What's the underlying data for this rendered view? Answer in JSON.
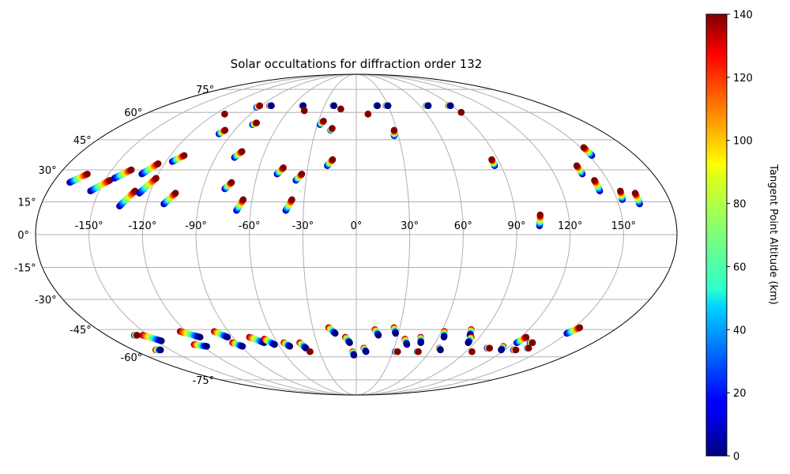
{
  "chart_data": {
    "type": "scatter",
    "projection": "mollweide",
    "title": "Solar occultations for diffraction order 132",
    "xlabel": "",
    "ylabel": "",
    "xlim": [
      -180,
      180
    ],
    "ylim": [
      -90,
      90
    ],
    "grid": true,
    "lon_ticks": [
      -150,
      -120,
      -90,
      -60,
      -30,
      0,
      30,
      60,
      90,
      120,
      150
    ],
    "lon_tick_labels": [
      "-150°",
      "-120°",
      "-90°",
      "-60°",
      "-30°",
      "0°",
      "30°",
      "60°",
      "90°",
      "120°",
      "150°"
    ],
    "lat_ticks": [
      75,
      60,
      45,
      30,
      15,
      0,
      -15,
      -30,
      -45,
      -60,
      -75
    ],
    "lat_tick_labels": [
      "75°",
      "60°",
      "45°",
      "30°",
      "15°",
      "0°",
      "-15°",
      "-30°",
      "-45°",
      "-60°",
      "-75°"
    ],
    "colorbar": {
      "label": "Tangent Point Altitude (km)",
      "min": 0,
      "max": 140,
      "ticks": [
        0,
        20,
        40,
        60,
        80,
        100,
        120,
        140
      ],
      "tick_labels": [
        "0",
        "20",
        "40",
        "60",
        "80",
        "100",
        "120",
        "140"
      ],
      "colormap": "jet"
    },
    "occultations": [
      {
        "lon": -170,
        "lat": 24,
        "dlon": 7,
        "dlat": 4,
        "dir": "up"
      },
      {
        "lon": -155,
        "lat": 20,
        "dlon": 8,
        "dlat": 5,
        "dir": "up"
      },
      {
        "lon": -145,
        "lat": 26,
        "dlon": 7,
        "dlat": 4,
        "dir": "up"
      },
      {
        "lon": -135,
        "lat": 13,
        "dlon": 6,
        "dlat": 7,
        "dir": "up"
      },
      {
        "lon": -130,
        "lat": 28,
        "dlon": 6,
        "dlat": 5,
        "dir": "up"
      },
      {
        "lon": -126,
        "lat": 19,
        "dlon": 6,
        "dlat": 7,
        "dir": "up"
      },
      {
        "lon": -116,
        "lat": 34,
        "dlon": 5,
        "dlat": 3,
        "dir": "up"
      },
      {
        "lon": -110,
        "lat": 14,
        "dlon": 5,
        "dlat": 5,
        "dir": "up"
      },
      {
        "lon": -112,
        "lat": 59,
        "dlon": 0,
        "dlat": 0,
        "dir": "up"
      },
      {
        "lon": -99,
        "lat": 48,
        "dlon": 2,
        "dlat": 2,
        "dir": "up"
      },
      {
        "lon": -92,
        "lat": 63,
        "dlon": 1,
        "dlat": 1,
        "dir": "up"
      },
      {
        "lon": -82,
        "lat": 64,
        "dlon": 2,
        "dlat": 0,
        "dir": "down"
      },
      {
        "lon": -80,
        "lat": 53,
        "dlon": 2,
        "dlat": 1,
        "dir": "up"
      },
      {
        "lon": -78,
        "lat": 36,
        "dlon": 3,
        "dlat": 3,
        "dir": "up"
      },
      {
        "lon": -77,
        "lat": 21,
        "dlon": 3,
        "dlat": 3,
        "dir": "up"
      },
      {
        "lon": -68,
        "lat": 11,
        "dlon": 3,
        "dlat": 5,
        "dir": "up"
      },
      {
        "lon": -51,
        "lat": 64,
        "dlon": 1,
        "dlat": 0,
        "dir": "down"
      },
      {
        "lon": -46,
        "lat": 61,
        "dlon": 0,
        "dlat": 0,
        "dir": "up"
      },
      {
        "lon": -48,
        "lat": 28,
        "dlon": 3,
        "dlat": 3,
        "dir": "up"
      },
      {
        "lon": -40,
        "lat": 11,
        "dlon": 3,
        "dlat": 5,
        "dir": "up"
      },
      {
        "lon": -36,
        "lat": 25,
        "dlon": 3,
        "dlat": 3,
        "dir": "up"
      },
      {
        "lon": -28,
        "lat": 53,
        "dlon": 2,
        "dlat": 2,
        "dir": "up"
      },
      {
        "lon": -22,
        "lat": 64,
        "dlon": 1,
        "dlat": 0,
        "dir": "down"
      },
      {
        "lon": -19,
        "lat": 50,
        "dlon": 1,
        "dlat": 1,
        "dir": "up"
      },
      {
        "lon": -18,
        "lat": 32,
        "dlon": 3,
        "dlat": 3,
        "dir": "up"
      },
      {
        "lon": -14,
        "lat": 62,
        "dlon": 0,
        "dlat": 0,
        "dir": "up"
      },
      {
        "lon": 10,
        "lat": 59,
        "dlon": 0,
        "dlat": 0,
        "dir": "up"
      },
      {
        "lon": 19,
        "lat": 64,
        "dlon": 1,
        "dlat": 0,
        "dir": "down"
      },
      {
        "lon": 28,
        "lat": 64,
        "dlon": 2,
        "dlat": 0,
        "dir": "down"
      },
      {
        "lon": 27,
        "lat": 47,
        "dlon": 1,
        "dlat": 3,
        "dir": "up"
      },
      {
        "lon": 66,
        "lat": 64,
        "dlon": 2,
        "dlat": 0,
        "dir": "down"
      },
      {
        "lon": 87,
        "lat": 64,
        "dlon": 2,
        "dlat": 0,
        "dir": "down"
      },
      {
        "lon": 91,
        "lat": 60,
        "dlon": 0,
        "dlat": 0,
        "dir": "up"
      },
      {
        "lon": 86,
        "lat": 32,
        "dlon": 0,
        "dlat": 3,
        "dir": "up"
      },
      {
        "lon": 103,
        "lat": 4,
        "dlon": 1,
        "dlat": 5,
        "dir": "up"
      },
      {
        "lon": 137,
        "lat": 28,
        "dlon": 0,
        "dlat": 4,
        "dir": "up"
      },
      {
        "lon": 142,
        "lat": 20,
        "dlon": 0,
        "dlat": 5,
        "dir": "up"
      },
      {
        "lon": 152,
        "lat": 37,
        "dlon": 0,
        "dlat": 4,
        "dir": "up"
      },
      {
        "lon": 153,
        "lat": 16,
        "dlon": 1,
        "dlat": 4,
        "dir": "up"
      },
      {
        "lon": 162,
        "lat": 14,
        "dlon": 0,
        "dlat": 5,
        "dir": "up"
      },
      {
        "lon": -160,
        "lat": -48,
        "dlon": 2,
        "dlat": 0,
        "dir": "up"
      },
      {
        "lon": -154,
        "lat": -48,
        "dlon": 8,
        "dlat": -3,
        "dir": "down"
      },
      {
        "lon": -162,
        "lat": -56,
        "dlon": 4,
        "dlat": 0,
        "dir": "down"
      },
      {
        "lon": -124,
        "lat": -46,
        "dlon": 10,
        "dlat": -3,
        "dir": "down"
      },
      {
        "lon": -125,
        "lat": -53,
        "dlon": 8,
        "dlat": -1,
        "dir": "down"
      },
      {
        "lon": -100,
        "lat": -46,
        "dlon": 6,
        "dlat": -3,
        "dir": "down"
      },
      {
        "lon": -94,
        "lat": -52,
        "dlon": 5,
        "dlat": -2,
        "dir": "down"
      },
      {
        "lon": -78,
        "lat": -49,
        "dlon": 8,
        "dlat": -3,
        "dir": "down"
      },
      {
        "lon": -68,
        "lat": -50,
        "dlon": 5,
        "dlat": -3,
        "dir": "down"
      },
      {
        "lon": -55,
        "lat": -52,
        "dlon": 3,
        "dlat": -2,
        "dir": "down"
      },
      {
        "lon": -43,
        "lat": -52,
        "dlon": 3,
        "dlat": -3,
        "dir": "down"
      },
      {
        "lon": -38,
        "lat": -57,
        "dlon": 0,
        "dlat": 0,
        "dir": "up"
      },
      {
        "lon": -19,
        "lat": -44,
        "dlon": 4,
        "dlat": -3,
        "dir": "down"
      },
      {
        "lon": -8,
        "lat": -49,
        "dlon": 3,
        "dlat": -3,
        "dir": "down"
      },
      {
        "lon": -3,
        "lat": -57,
        "dlon": 1,
        "dlat": -2,
        "dir": "down"
      },
      {
        "lon": 6,
        "lat": -55,
        "dlon": 2,
        "dlat": -2,
        "dir": "down"
      },
      {
        "lon": 13,
        "lat": -45,
        "dlon": 3,
        "dlat": -3,
        "dir": "down"
      },
      {
        "lon": 26,
        "lat": -44,
        "dlon": 2,
        "dlat": -3,
        "dir": "down"
      },
      {
        "lon": 36,
        "lat": -50,
        "dlon": 3,
        "dlat": -3,
        "dir": "down"
      },
      {
        "lon": 32,
        "lat": -57,
        "dlon": 2,
        "dlat": 0,
        "dir": "up"
      },
      {
        "lon": 47,
        "lat": -49,
        "dlon": 2,
        "dlat": -3,
        "dir": "down"
      },
      {
        "lon": 50,
        "lat": -57,
        "dlon": 1,
        "dlat": 0,
        "dir": "up"
      },
      {
        "lon": 62,
        "lat": -46,
        "dlon": 2,
        "dlat": -3,
        "dir": "down"
      },
      {
        "lon": 66,
        "lat": -55,
        "dlon": 2,
        "dlat": -1,
        "dir": "down"
      },
      {
        "lon": 80,
        "lat": -45,
        "dlon": 2,
        "dlat": -3,
        "dir": "down"
      },
      {
        "lon": 84,
        "lat": -49,
        "dlon": 1,
        "dlat": -3,
        "dir": "down"
      },
      {
        "lon": 95,
        "lat": -57,
        "dlon": 0,
        "dlat": 0,
        "dir": "up"
      },
      {
        "lon": 104,
        "lat": -55,
        "dlon": 2,
        "dlat": 0,
        "dir": "up"
      },
      {
        "lon": 115,
        "lat": -54,
        "dlon": 2,
        "dlat": -2,
        "dir": "down"
      },
      {
        "lon": 122,
        "lat": -52,
        "dlon": 2,
        "dlat": 3,
        "dir": "up"
      },
      {
        "lon": 127,
        "lat": -56,
        "dlon": 2,
        "dlat": 0,
        "dir": "up"
      },
      {
        "lon": 132,
        "lat": -52,
        "dlon": 2,
        "dlat": 0,
        "dir": "up"
      },
      {
        "lon": 136,
        "lat": -55,
        "dlon": 1,
        "dlat": 0,
        "dir": "up"
      },
      {
        "lon": 150,
        "lat": -47,
        "dlon": 4,
        "dlat": 3,
        "dir": "up"
      }
    ]
  }
}
